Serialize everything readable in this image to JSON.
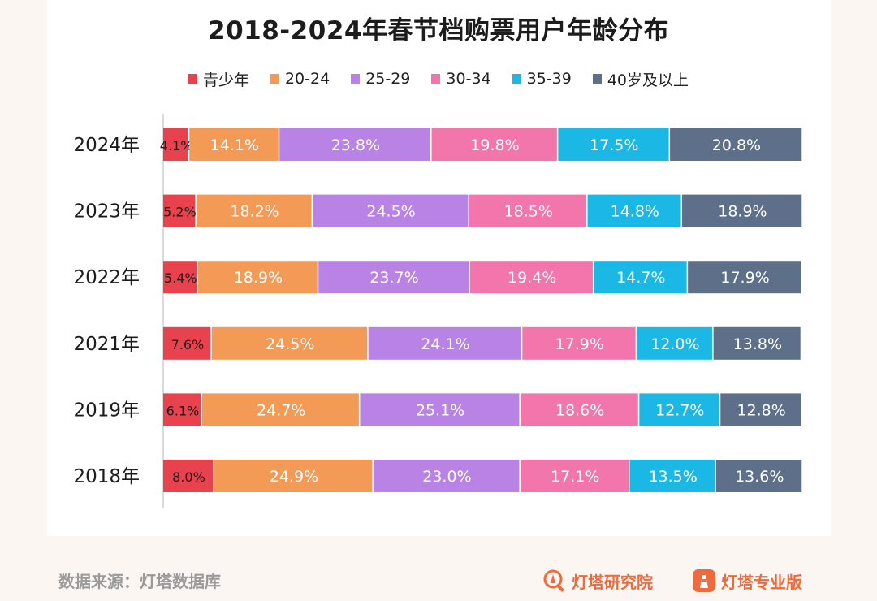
{
  "chart_data": {
    "type": "bar",
    "orientation": "horizontal",
    "stacked": true,
    "title": "2018-2024年春节档购票用户年龄分布",
    "categories": [
      "2024年",
      "2023年",
      "2022年",
      "2021年",
      "2019年",
      "2018年"
    ],
    "series": [
      {
        "name": "青少年",
        "color": "#e8424e",
        "values": [
          4.1,
          5.2,
          5.4,
          7.6,
          6.1,
          8.0
        ]
      },
      {
        "name": "20-24",
        "color": "#f39a57",
        "values": [
          14.1,
          18.2,
          18.9,
          24.5,
          24.7,
          24.9
        ]
      },
      {
        "name": "25-29",
        "color": "#b983e5",
        "values": [
          23.8,
          24.5,
          23.7,
          24.1,
          25.1,
          23.0
        ]
      },
      {
        "name": "30-34",
        "color": "#f275ab",
        "values": [
          19.8,
          18.5,
          19.4,
          17.9,
          18.6,
          17.1
        ]
      },
      {
        "name": "35-39",
        "color": "#1cb8e5",
        "values": [
          17.5,
          14.8,
          14.7,
          12.0,
          12.7,
          13.5
        ]
      },
      {
        "name": "40岁及以上",
        "color": "#5e7089",
        "values": [
          20.8,
          18.9,
          17.9,
          13.8,
          12.8,
          13.6
        ]
      }
    ],
    "labels": [
      [
        "4.1%",
        "14.1%",
        "23.8%",
        "19.8%",
        "17.5%",
        "20.8%"
      ],
      [
        "5.2%",
        "18.2%",
        "24.5%",
        "18.5%",
        "14.8%",
        "18.9%"
      ],
      [
        "5.4%",
        "18.9%",
        "23.7%",
        "19.4%",
        "14.7%",
        "17.9%"
      ],
      [
        "7.6%",
        "24.5%",
        "24.1%",
        "17.9%",
        "12.0%",
        "13.8%"
      ],
      [
        "6.1%",
        "24.7%",
        "25.1%",
        "18.6%",
        "12.7%",
        "12.8%"
      ],
      [
        "8.0%",
        "24.9%",
        "23.0%",
        "17.1%",
        "13.5%",
        "13.6%"
      ]
    ],
    "xlim": [
      0,
      100
    ],
    "grid": false,
    "legend_position": "top-center"
  },
  "footer": {
    "source": "数据来源：灯塔数据库",
    "brand1": "灯塔研究院",
    "brand2": "灯塔专业版"
  },
  "brand_color": "#ef6a3c"
}
